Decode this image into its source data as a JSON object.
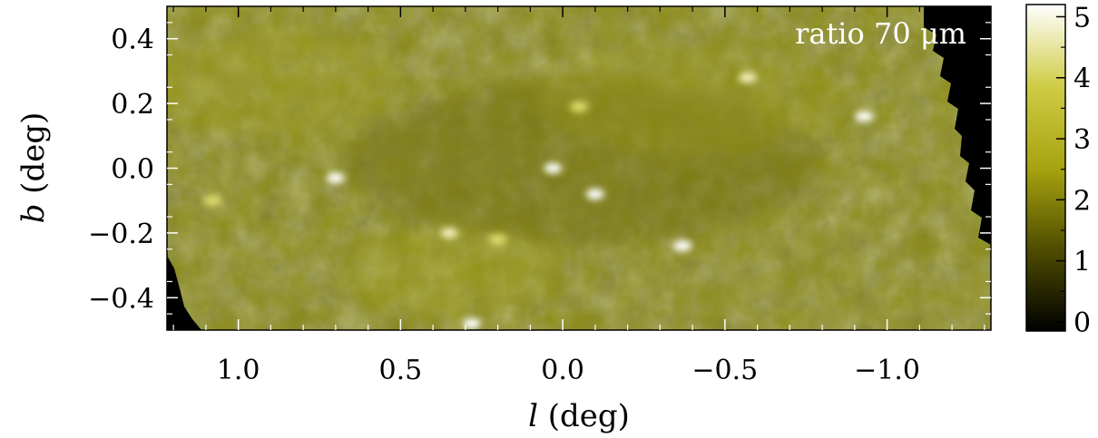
{
  "chart_data": {
    "type": "heatmap",
    "panel_label": "ratio 70 μm",
    "x_axis": {
      "label_var": "l",
      "label_unit": " (deg)",
      "range": [
        1.22,
        -1.32
      ],
      "ticks": [
        1.0,
        0.5,
        0.0,
        -0.5,
        -1.0
      ],
      "tick_labels": [
        "1.0",
        "0.5",
        "0.0",
        "−0.5",
        "−1.0"
      ]
    },
    "y_axis": {
      "label_var": "b",
      "label_unit": " (deg)",
      "range": [
        -0.5,
        0.5
      ],
      "ticks": [
        0.4,
        0.2,
        0.0,
        -0.2,
        -0.4
      ],
      "tick_labels": [
        "0.4",
        "0.2",
        "0.0",
        "−0.2",
        "−0.4"
      ]
    },
    "colorbar": {
      "range": [
        -0.15,
        5.2
      ],
      "ticks": [
        5,
        4,
        3,
        2,
        1,
        0
      ],
      "tick_labels": [
        "5",
        "4",
        "3",
        "2",
        "1",
        "0"
      ],
      "colors": [
        "#000000",
        "#4f4d00",
        "#a8a310",
        "#cfcc45",
        "#ffffff"
      ]
    },
    "background_color": "#8a8a14",
    "bright_features": [
      {
        "l": 0.7,
        "b": -0.03,
        "ratio": 5
      },
      {
        "l": 0.03,
        "b": 0.0,
        "ratio": 4.8
      },
      {
        "l": -0.1,
        "b": -0.08,
        "ratio": 5
      },
      {
        "l": -0.37,
        "b": -0.24,
        "ratio": 5
      },
      {
        "l": -0.57,
        "b": 0.28,
        "ratio": 4.5
      },
      {
        "l": -0.93,
        "b": 0.16,
        "ratio": 5
      },
      {
        "l": 0.28,
        "b": -0.48,
        "ratio": 5
      },
      {
        "l": 0.35,
        "b": -0.2,
        "ratio": 4.5
      },
      {
        "l": -0.05,
        "b": 0.19,
        "ratio": 4.3
      },
      {
        "l": 1.08,
        "b": -0.1,
        "ratio": 4.2
      },
      {
        "l": 0.2,
        "b": -0.22,
        "ratio": 4
      }
    ],
    "masked_regions": [
      {
        "side": "right",
        "description_free": true
      },
      {
        "side": "bottom-left",
        "description_free": true
      }
    ]
  }
}
